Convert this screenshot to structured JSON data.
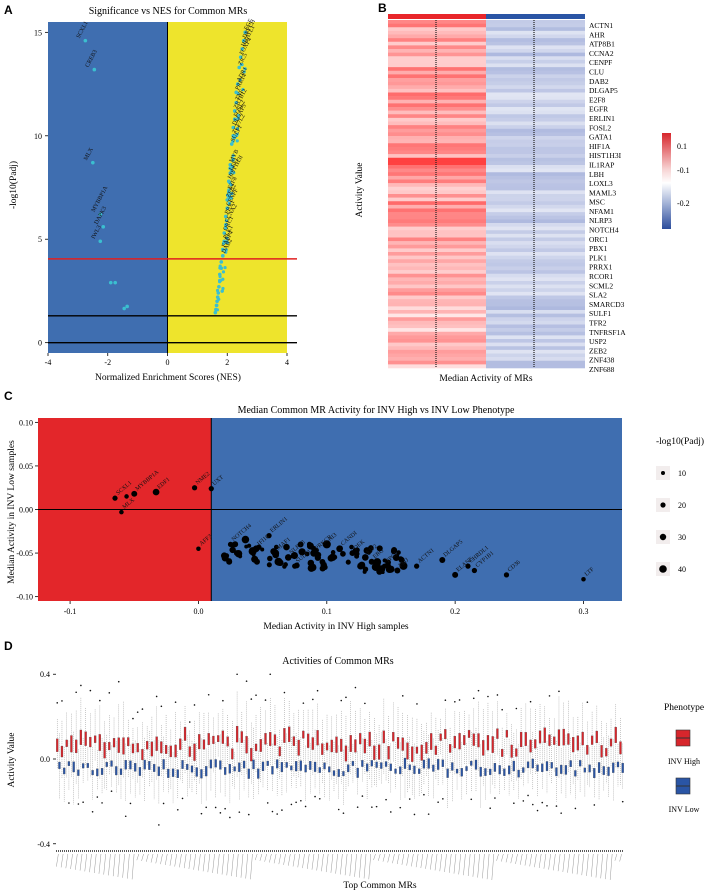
{
  "panels": {
    "A": {
      "letter": "A",
      "title": "Significance vs NES for Common MRs",
      "xlabel": "Normalized Enrichment Scores (NES)",
      "ylabel": "-log10(Padj)",
      "xticks": [
        "-4",
        "-2",
        "0",
        "2",
        "4"
      ],
      "yticks": [
        "0",
        "5",
        "10",
        "15"
      ],
      "colors": {
        "negative_bg": "#3f6eb0",
        "positive_bg": "#eee42c",
        "points": "#3bbfd0",
        "threshold": "#e02020"
      }
    },
    "B": {
      "letter": "B",
      "ylabel": "Activity Value",
      "xlabel": "Median Activity of MRs",
      "genes": [
        "ACTN1",
        "AHR",
        "ATP8B1",
        "CCNA2",
        "CENPF",
        "CLU",
        "DAB2",
        "DLGAP5",
        "E2F8",
        "EGFR",
        "ERLIN1",
        "FOSL2",
        "GATA1",
        "HIF1A",
        "HIST1H3I",
        "IL1RAP",
        "LBH",
        "LOXL3",
        "MAML3",
        "MSC",
        "NFAM1",
        "NLRP3",
        "NOTCH4",
        "ORC1",
        "PBX1",
        "PLK1",
        "PRRX1",
        "RCOR1",
        "SCML2",
        "SLA2",
        "SMARCD3",
        "SULF1",
        "TFR2",
        "TNFRSF1A",
        "USP2",
        "ZEB2",
        "ZNF438",
        "ZNF688"
      ],
      "colorbar_ticks": [
        "0.1",
        "-0.1",
        "-0.2"
      ],
      "colors": {
        "high": "#d7262c",
        "mid": "#ffffff",
        "low": "#2c4d9c",
        "top_bar_high": "#e8262a",
        "top_bar_low": "#2a55a5"
      }
    },
    "C": {
      "letter": "C",
      "title": "Median Common MR Activity for INV High vs INV Low Phenotype",
      "xlabel": "Median Activity in INV High samples",
      "ylabel": "Median Activity in INV Low samples",
      "xticks": [
        "-0.1",
        "0.0",
        "0.1",
        "0.2",
        "0.3"
      ],
      "yticks": [
        "-0.10",
        "-0.05",
        "0.00",
        "0.05",
        "0.10"
      ],
      "legend_title": "-log10(Padj)",
      "legend_items": [
        "10",
        "20",
        "30",
        "40"
      ],
      "colors": {
        "left_bg": "#e3262a",
        "right_bg": "#3f6eb0"
      }
    },
    "D": {
      "letter": "D",
      "title": "Activities of Common MRs",
      "xlabel": "Top Common MRs",
      "ylabel": "Activity Value",
      "yticks": [
        "0.4",
        "0.0",
        "-0.4"
      ],
      "legend_title": "Phenotype",
      "legend_items": [
        "INV High",
        "INV Low"
      ],
      "colors": {
        "high": "#d7262c",
        "low": "#2a55a5"
      }
    }
  },
  "chart_data": [
    {
      "type": "scatter",
      "title": "Significance vs NES for Common MRs",
      "xlabel": "Normalized Enrichment Scores (NES)",
      "ylabel": "-log10(Padj)",
      "xlim": [
        -4,
        4
      ],
      "ylim": [
        -0.5,
        15.5
      ],
      "hlines": [
        4.05,
        1.3,
        0
      ],
      "vline": 0,
      "points": [
        {
          "x": -2.75,
          "y": 14.6,
          "label": "SCXL1"
        },
        {
          "x": -2.45,
          "y": 13.2,
          "label": "CREB3"
        },
        {
          "x": -2.5,
          "y": 8.7,
          "label": "MLX"
        },
        {
          "x": -2.25,
          "y": 6.2,
          "label": "MYBBP1A"
        },
        {
          "x": -2.15,
          "y": 5.6,
          "label": "DAPK3"
        },
        {
          "x": -2.25,
          "y": 4.9,
          "label": "IWL3"
        },
        {
          "x": -1.9,
          "y": 2.9,
          "label": ""
        },
        {
          "x": -1.75,
          "y": 2.9,
          "label": ""
        },
        {
          "x": -1.45,
          "y": 1.65,
          "label": ""
        },
        {
          "x": -1.35,
          "y": 1.75,
          "label": ""
        },
        {
          "x": 2.6,
          "y": 15.0,
          "label": "EGF"
        },
        {
          "x": 2.55,
          "y": 14.6,
          "label": "DPYCH"
        },
        {
          "x": 2.5,
          "y": 14.2,
          "label": "HHATL1"
        },
        {
          "x": 2.45,
          "y": 13.8,
          "label": "FOXP4"
        },
        {
          "x": 2.4,
          "y": 13.3,
          "label": "ZIC5"
        },
        {
          "x": 2.35,
          "y": 12.5,
          "label": "ADR1"
        },
        {
          "x": 2.3,
          "y": 12.1,
          "label": "PRR14"
        },
        {
          "x": 2.3,
          "y": 11.6,
          "label": "TNF"
        },
        {
          "x": 2.25,
          "y": 11.2,
          "label": "ZBTB12"
        },
        {
          "x": 2.25,
          "y": 10.8,
          "label": "FOSL2"
        },
        {
          "x": 2.2,
          "y": 10.4,
          "label": "DLGAP5"
        },
        {
          "x": 2.2,
          "y": 10.0,
          "label": "TCF7L2"
        },
        {
          "x": 2.15,
          "y": 9.6,
          "label": "SULF1"
        },
        {
          "x": 2.1,
          "y": 8.6,
          "label": "MYB"
        },
        {
          "x": 2.1,
          "y": 8.2,
          "label": "LEF1"
        },
        {
          "x": 2.05,
          "y": 7.8,
          "label": "HIST1H3I"
        },
        {
          "x": 2.05,
          "y": 7.3,
          "label": "E2F8"
        },
        {
          "x": 2.0,
          "y": 6.9,
          "label": "ZEB2"
        },
        {
          "x": 2.0,
          "y": 6.5,
          "label": "CENPF"
        },
        {
          "x": 1.95,
          "y": 6.1,
          "label": "PBX1"
        },
        {
          "x": 1.95,
          "y": 5.7,
          "label": "CCNA2"
        },
        {
          "x": 1.9,
          "y": 5.3,
          "label": "ORC1"
        },
        {
          "x": 1.9,
          "y": 4.9,
          "label": "PLK1"
        },
        {
          "x": 1.85,
          "y": 4.5,
          "label": "FABP4"
        },
        {
          "x": 1.85,
          "y": 4.2,
          "label": "DAB2"
        },
        {
          "x": 1.8,
          "y": 3.9,
          "label": ""
        },
        {
          "x": 1.8,
          "y": 3.6,
          "label": ""
        },
        {
          "x": 1.75,
          "y": 3.3,
          "label": ""
        },
        {
          "x": 1.75,
          "y": 3.0,
          "label": ""
        },
        {
          "x": 1.72,
          "y": 2.7,
          "label": ""
        },
        {
          "x": 1.7,
          "y": 2.4,
          "label": ""
        },
        {
          "x": 1.68,
          "y": 2.2,
          "label": ""
        },
        {
          "x": 1.66,
          "y": 2.0,
          "label": ""
        },
        {
          "x": 1.64,
          "y": 1.8,
          "label": ""
        },
        {
          "x": 1.62,
          "y": 1.6,
          "label": ""
        },
        {
          "x": 1.6,
          "y": 1.45,
          "label": ""
        }
      ]
    },
    {
      "type": "heatmap",
      "ylabel": "Activity Value",
      "xlabel": "Median Activity of MRs",
      "columns": [
        "INV High",
        "INV Low"
      ],
      "rows": 38,
      "color_range": [
        -0.25,
        0.15
      ],
      "column_means": [
        0.08,
        -0.12
      ]
    },
    {
      "type": "scatter",
      "title": "Median Common MR Activity for INV High vs INV Low Phenotype",
      "xlabel": "Median Activity in INV High samples",
      "ylabel": "Median Activity in INV Low samples",
      "xlim": [
        -0.125,
        0.33
      ],
      "ylim": [
        -0.105,
        0.105
      ],
      "points": [
        {
          "x": -0.065,
          "y": 0.013,
          "size": 20,
          "label": "SCXL1"
        },
        {
          "x": -0.056,
          "y": 0.015,
          "size": 15,
          "label": ""
        },
        {
          "x": -0.05,
          "y": 0.018,
          "size": 25,
          "label": "MYBBP1A"
        },
        {
          "x": -0.06,
          "y": -0.003,
          "size": 15,
          "label": "MLX"
        },
        {
          "x": -0.033,
          "y": 0.02,
          "size": 30,
          "label": "EDF1"
        },
        {
          "x": -0.003,
          "y": 0.025,
          "size": 20,
          "label": "NME2"
        },
        {
          "x": 0.01,
          "y": 0.024,
          "size": 20,
          "label": "UXT"
        },
        {
          "x": 0.0,
          "y": -0.045,
          "size": 15,
          "label": "AFF3"
        },
        {
          "x": 0.025,
          "y": -0.04,
          "size": 20,
          "label": "NOTCH4"
        },
        {
          "x": 0.03,
          "y": -0.05,
          "size": 25,
          "label": ""
        },
        {
          "x": 0.045,
          "y": -0.045,
          "size": 30,
          "label": "IFI16"
        },
        {
          "x": 0.055,
          "y": -0.03,
          "size": 20,
          "label": "ERLIN1"
        },
        {
          "x": 0.06,
          "y": -0.05,
          "size": 35,
          "label": "MAF1"
        },
        {
          "x": 0.07,
          "y": -0.055,
          "size": 30,
          "label": "NLRP3"
        },
        {
          "x": 0.075,
          "y": -0.065,
          "size": 20,
          "label": "SULF1"
        },
        {
          "x": 0.09,
          "y": -0.05,
          "size": 35,
          "label": "PRKCB"
        },
        {
          "x": 0.1,
          "y": -0.04,
          "size": 40,
          "label": "AI3"
        },
        {
          "x": 0.11,
          "y": -0.045,
          "size": 30,
          "label": "CANDI"
        },
        {
          "x": 0.12,
          "y": -0.05,
          "size": 25,
          "label": "DEK"
        },
        {
          "x": 0.13,
          "y": -0.055,
          "size": 30,
          "label": "EIF2"
        },
        {
          "x": 0.135,
          "y": -0.06,
          "size": 25,
          "label": "ERG"
        },
        {
          "x": 0.145,
          "y": -0.065,
          "size": 20,
          "label": "TP63"
        },
        {
          "x": 0.155,
          "y": -0.07,
          "size": 25,
          "label": "PMJ"
        },
        {
          "x": 0.17,
          "y": -0.065,
          "size": 20,
          "label": "ACTN1"
        },
        {
          "x": 0.19,
          "y": -0.058,
          "size": 25,
          "label": "DLGAP5"
        },
        {
          "x": 0.2,
          "y": -0.075,
          "size": 25,
          "label": "ELANE"
        },
        {
          "x": 0.21,
          "y": -0.065,
          "size": 20,
          "label": "CHRDL1"
        },
        {
          "x": 0.215,
          "y": -0.07,
          "size": 20,
          "label": "CYP1B1"
        },
        {
          "x": 0.24,
          "y": -0.075,
          "size": 20,
          "label": "CD36"
        },
        {
          "x": 0.3,
          "y": -0.08,
          "size": 15,
          "label": "LTF"
        }
      ]
    },
    {
      "type": "box",
      "title": "Activities of Common MRs",
      "xlabel": "Top Common MRs",
      "ylabel": "Activity Value",
      "ylim": [
        -0.42,
        0.42
      ],
      "series": [
        {
          "name": "INV High"
        },
        {
          "name": "INV Low"
        }
      ],
      "n_groups": 120
    }
  ]
}
